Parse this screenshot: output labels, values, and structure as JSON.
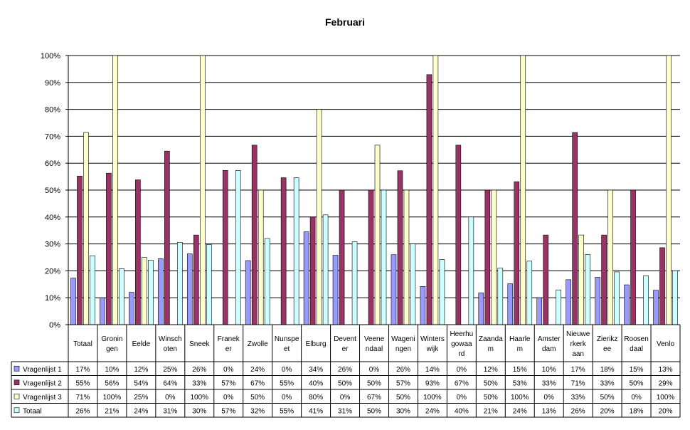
{
  "chart_data": {
    "type": "bar",
    "title": "Februari",
    "xlabel": "",
    "ylabel": "",
    "ylim": [
      0,
      100
    ],
    "y_ticks": [
      "0%",
      "10%",
      "20%",
      "30%",
      "40%",
      "50%",
      "60%",
      "70%",
      "80%",
      "90%",
      "100%"
    ],
    "grid": "horizontal",
    "legend": "table-below",
    "categories": [
      [
        "Totaal"
      ],
      [
        "Gronin",
        "gen"
      ],
      [
        "Eelde"
      ],
      [
        "Winsch",
        "oten"
      ],
      [
        "Sneek"
      ],
      [
        "Franek",
        "er"
      ],
      [
        "Zwolle"
      ],
      [
        "Nunspe",
        "et"
      ],
      [
        "Elburg"
      ],
      [
        "Devent",
        "er"
      ],
      [
        "Veene",
        "ndaal"
      ],
      [
        "Wageni",
        "ngen"
      ],
      [
        "Winters",
        "wijk"
      ],
      [
        "Heerhu",
        "gowaa",
        "rd"
      ],
      [
        "Zaanda",
        "m"
      ],
      [
        "Haarle",
        "m"
      ],
      [
        "Amster",
        "dam"
      ],
      [
        "Nieuwe",
        "rkerk",
        "aan"
      ],
      [
        "Zierikz",
        "ee"
      ],
      [
        "Roosen",
        "daal"
      ],
      [
        "Venlo"
      ]
    ],
    "series": [
      {
        "name": "Vragenlijst 1",
        "color": "#9999ff",
        "values": [
          17.3,
          10,
          12,
          24.5,
          26.3,
          0,
          23.8,
          0,
          34.5,
          25.8,
          0,
          26,
          14.2,
          0,
          11.8,
          15.2,
          10,
          16.7,
          17.6,
          14.8,
          12.8
        ],
        "labels": [
          "17%",
          "10%",
          "12%",
          "25%",
          "26%",
          "0%",
          "24%",
          "0%",
          "34%",
          "26%",
          "0%",
          "26%",
          "14%",
          "0%",
          "12%",
          "15%",
          "10%",
          "17%",
          "18%",
          "15%",
          "13%"
        ]
      },
      {
        "name": "Vragenlijst 2",
        "color": "#993366",
        "values": [
          55.2,
          56.3,
          53.8,
          64.5,
          33.3,
          57.3,
          66.7,
          54.6,
          40,
          50,
          50,
          57.2,
          92.9,
          66.7,
          50,
          53.1,
          33.3,
          71.4,
          33.3,
          50,
          28.6
        ],
        "labels": [
          "55%",
          "56%",
          "54%",
          "64%",
          "33%",
          "57%",
          "67%",
          "55%",
          "40%",
          "50%",
          "50%",
          "57%",
          "93%",
          "67%",
          "50%",
          "53%",
          "33%",
          "71%",
          "33%",
          "50%",
          "29%"
        ]
      },
      {
        "name": "Vragenlijst 3",
        "color": "#ffffcc",
        "values": [
          71.4,
          100,
          25,
          0,
          100,
          0,
          50,
          0,
          80,
          0,
          66.7,
          50,
          100,
          0,
          50,
          100,
          0,
          33.3,
          50,
          0,
          100
        ],
        "labels": [
          "71%",
          "100%",
          "25%",
          "0%",
          "100%",
          "0%",
          "50%",
          "0%",
          "80%",
          "0%",
          "67%",
          "50%",
          "100%",
          "0%",
          "50%",
          "100%",
          "0%",
          "33%",
          "50%",
          "0%",
          "100%"
        ]
      },
      {
        "name": "Totaal",
        "color": "#ccffff",
        "values": [
          25.6,
          20.8,
          24,
          30.6,
          29.8,
          57.3,
          32,
          54.6,
          40.8,
          30.8,
          50,
          30,
          24.2,
          40,
          21,
          23.6,
          12.9,
          26.1,
          19.6,
          18.2,
          20
        ],
        "labels": [
          "26%",
          "21%",
          "24%",
          "31%",
          "30%",
          "57%",
          "32%",
          "55%",
          "41%",
          "31%",
          "50%",
          "30%",
          "24%",
          "40%",
          "21%",
          "24%",
          "13%",
          "26%",
          "20%",
          "18%",
          "20%"
        ]
      }
    ]
  }
}
